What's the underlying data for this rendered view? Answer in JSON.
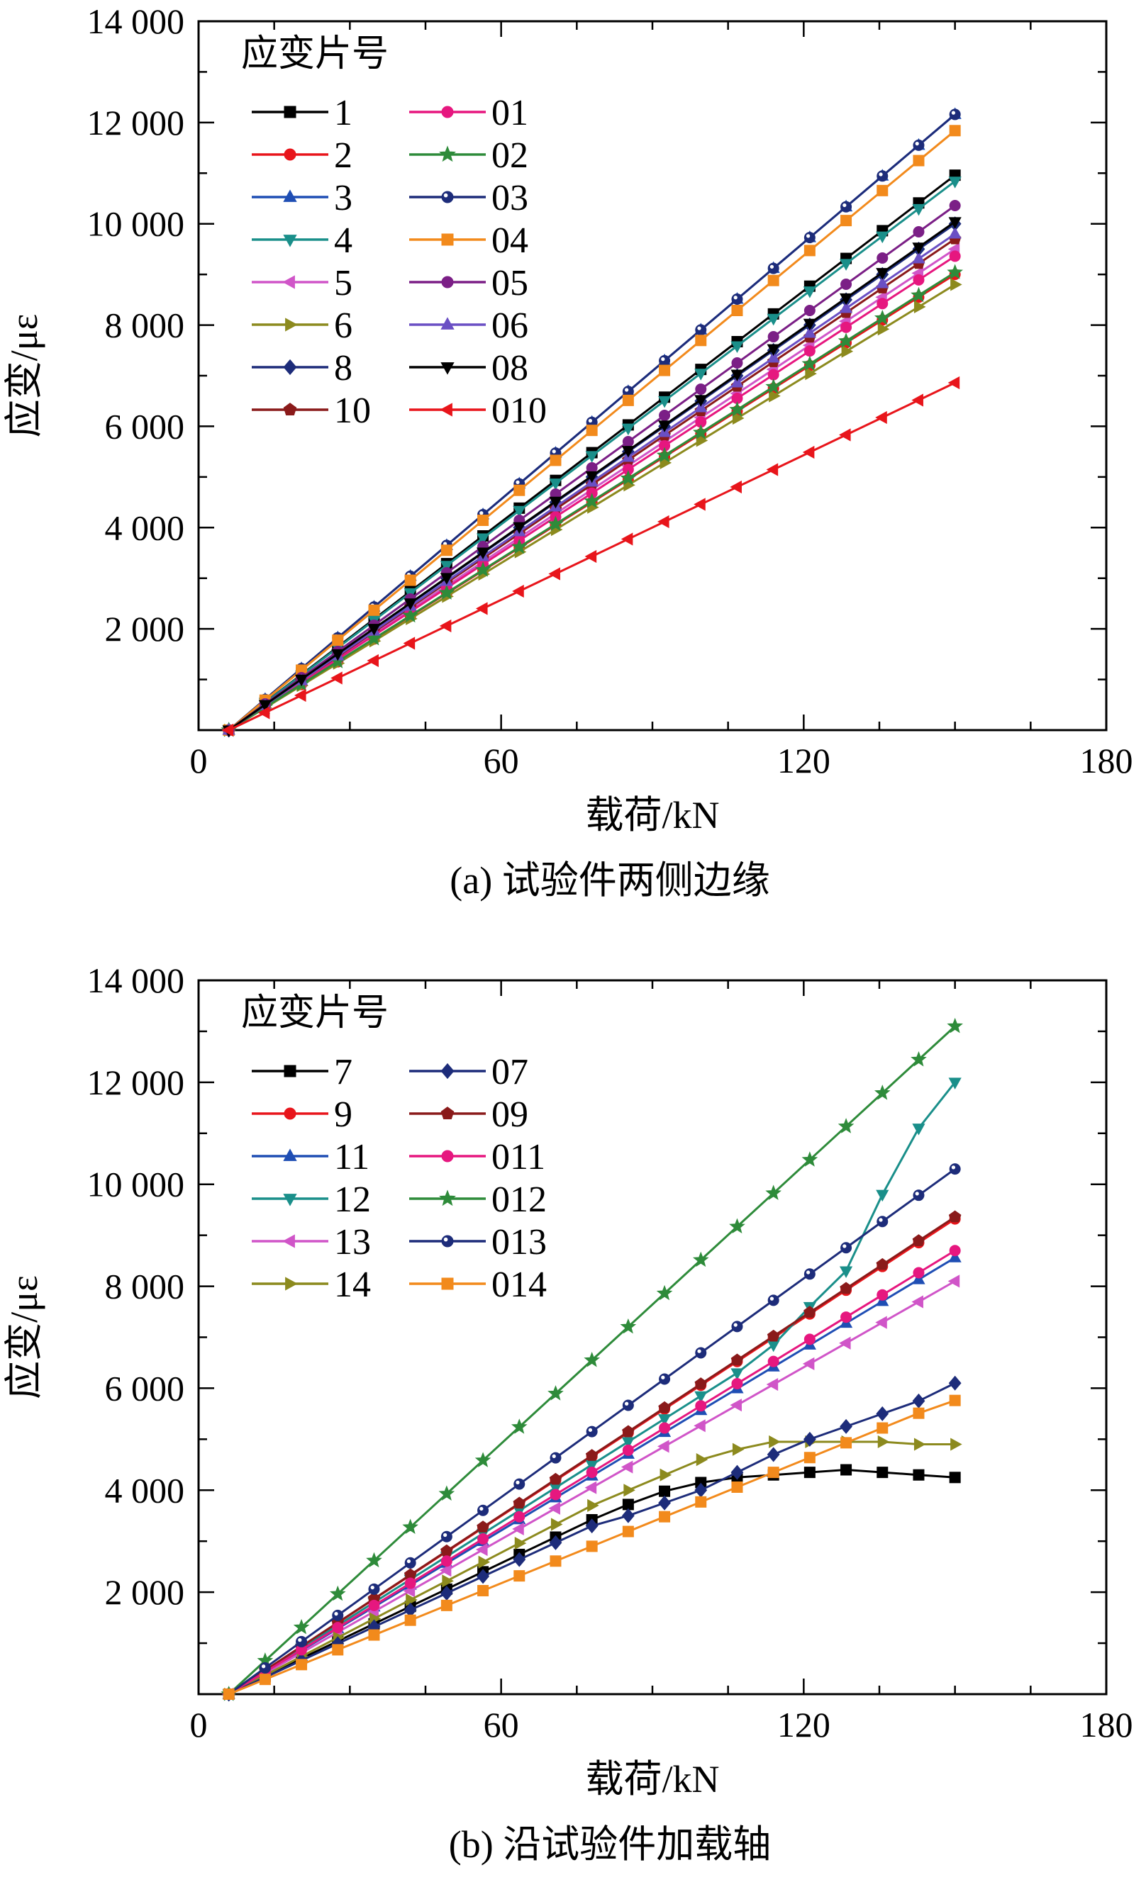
{
  "chart_data": [
    {
      "type": "line",
      "caption": "(a) 试验件两侧边缘",
      "xlabel": "载荷/kN",
      "ylabel": "应变/με",
      "xlim": [
        0,
        180
      ],
      "ylim": [
        0,
        14000
      ],
      "xticks": [
        0,
        60,
        120,
        180
      ],
      "yticks": [
        2000,
        4000,
        6000,
        8000,
        10000,
        12000,
        14000
      ],
      "xtick_labels": [
        "0",
        "60",
        "120",
        "180"
      ],
      "ytick_labels": [
        "2 000",
        "4 000",
        "6 000",
        "8 000",
        "10 000",
        "12 000",
        "14 000"
      ],
      "legend_title": "应变片号",
      "legend_position": "top-left",
      "x": [
        6,
        13.2,
        20.4,
        27.6,
        34.8,
        42,
        49.2,
        56.4,
        63.6,
        70.8,
        78,
        85.2,
        92.4,
        99.6,
        106.8,
        114,
        121.2,
        128.4,
        135.6,
        142.8,
        150
      ],
      "series": [
        {
          "name": "1",
          "color": "#000000",
          "marker": "square",
          "values": [
            0,
            548,
            1096,
            1644,
            2192,
            2740,
            3288,
            3836,
            4384,
            4932,
            5480,
            6028,
            6576,
            7124,
            7672,
            8220,
            8768,
            9316,
            9864,
            10412,
            10960
          ]
        },
        {
          "name": "2",
          "color": "#e8151b",
          "marker": "circle",
          "values": [
            0,
            450,
            900,
            1350,
            1800,
            2250,
            2700,
            3150,
            3600,
            4050,
            4500,
            4950,
            5400,
            5850,
            6300,
            6750,
            7200,
            7650,
            8100,
            8550,
            9000
          ]
        },
        {
          "name": "3",
          "color": "#1f4eb4",
          "marker": "triangle-up",
          "values": [
            0,
            608,
            1216,
            1824,
            2432,
            3040,
            3648,
            4256,
            4864,
            5472,
            6080,
            6688,
            7296,
            7904,
            8512,
            9120,
            9728,
            10336,
            10944,
            11552,
            12160
          ]
        },
        {
          "name": "4",
          "color": "#1a8f8a",
          "marker": "triangle-down",
          "values": [
            0,
            542,
            1084,
            1626,
            2168,
            2710,
            3252,
            3794,
            4336,
            4878,
            5420,
            5962,
            6504,
            7046,
            7588,
            8130,
            8672,
            9214,
            9756,
            10298,
            10840
          ]
        },
        {
          "name": "5",
          "color": "#d055c8",
          "marker": "triangle-left",
          "values": [
            0,
            475,
            950,
            1425,
            1900,
            2375,
            2850,
            3325,
            3800,
            4275,
            4750,
            5225,
            5700,
            6175,
            6650,
            7125,
            7600,
            8075,
            8550,
            9025,
            9500
          ]
        },
        {
          "name": "6",
          "color": "#8c8a1e",
          "marker": "triangle-right",
          "values": [
            0,
            440,
            880,
            1320,
            1760,
            2200,
            2640,
            3080,
            3520,
            3960,
            4400,
            4840,
            5280,
            5720,
            6160,
            6600,
            7040,
            7480,
            7920,
            8360,
            8800
          ]
        },
        {
          "name": "8",
          "color": "#1d2c7a",
          "marker": "diamond",
          "values": [
            0,
            500,
            1000,
            1500,
            2000,
            2500,
            3000,
            3500,
            4000,
            4500,
            5000,
            5500,
            6000,
            6500,
            7000,
            7500,
            8000,
            8500,
            9000,
            9500,
            10000
          ]
        },
        {
          "name": "10",
          "color": "#8a1a1a",
          "marker": "pentagon",
          "values": [
            0,
            485,
            970,
            1455,
            1940,
            2425,
            2910,
            3395,
            3880,
            4365,
            4850,
            5335,
            5820,
            6305,
            6790,
            7275,
            7760,
            8245,
            8730,
            9215,
            9700
          ]
        },
        {
          "name": "01",
          "color": "#e6177f",
          "marker": "circle",
          "values": [
            0,
            468,
            936,
            1404,
            1872,
            2340,
            2808,
            3276,
            3744,
            4212,
            4680,
            5148,
            5616,
            6084,
            6552,
            7020,
            7488,
            7956,
            8424,
            8892,
            9360
          ]
        },
        {
          "name": "02",
          "color": "#2e8b3a",
          "marker": "star",
          "values": [
            0,
            452,
            904,
            1356,
            1808,
            2260,
            2712,
            3164,
            3616,
            4068,
            4520,
            4972,
            5424,
            5876,
            6328,
            6780,
            7232,
            7684,
            8136,
            8588,
            9040
          ]
        },
        {
          "name": "03",
          "color": "#1d2c7a",
          "marker": "circle-dot",
          "values": [
            0,
            608,
            1216,
            1824,
            2432,
            3040,
            3648,
            4256,
            4864,
            5472,
            6080,
            6688,
            7296,
            7904,
            8512,
            9120,
            9728,
            10336,
            10944,
            11552,
            12160
          ]
        },
        {
          "name": "04",
          "color": "#f28a1c",
          "marker": "square",
          "values": [
            0,
            592,
            1184,
            1776,
            2368,
            2960,
            3552,
            4144,
            4736,
            5328,
            5920,
            6512,
            7104,
            7696,
            8288,
            8880,
            9472,
            10064,
            10656,
            11248,
            11840
          ]
        },
        {
          "name": "05",
          "color": "#7b1f86",
          "marker": "circle",
          "values": [
            0,
            518,
            1036,
            1554,
            2072,
            2590,
            3108,
            3626,
            4144,
            4662,
            5180,
            5698,
            6216,
            6734,
            7252,
            7770,
            8288,
            8806,
            9324,
            9842,
            10360
          ]
        },
        {
          "name": "06",
          "color": "#6a4fc4",
          "marker": "triangle-up",
          "values": [
            0,
            490,
            980,
            1470,
            1960,
            2450,
            2940,
            3430,
            3920,
            4410,
            4900,
            5390,
            5880,
            6370,
            6860,
            7350,
            7840,
            8330,
            8820,
            9310,
            9800
          ]
        },
        {
          "name": "08",
          "color": "#000000",
          "marker": "triangle-down",
          "values": [
            0,
            502,
            1004,
            1506,
            2008,
            2510,
            3012,
            3514,
            4016,
            4518,
            5020,
            5522,
            6024,
            6526,
            7028,
            7530,
            8032,
            8534,
            9036,
            9538,
            10040
          ]
        },
        {
          "name": "010",
          "color": "#e8151b",
          "marker": "triangle-left",
          "values": [
            0,
            343,
            686,
            1029,
            1372,
            1715,
            2058,
            2401,
            2744,
            3087,
            3430,
            3773,
            4116,
            4459,
            4802,
            5145,
            5488,
            5831,
            6174,
            6517,
            6860
          ]
        }
      ]
    },
    {
      "type": "line",
      "caption": "(b) 沿试验件加载轴",
      "xlabel": "载荷/kN",
      "ylabel": "应变/με",
      "xlim": [
        0,
        180
      ],
      "ylim": [
        0,
        14000
      ],
      "xticks": [
        0,
        60,
        120,
        180
      ],
      "yticks": [
        2000,
        4000,
        6000,
        8000,
        10000,
        12000,
        14000
      ],
      "xtick_labels": [
        "0",
        "60",
        "120",
        "180"
      ],
      "ytick_labels": [
        "2 000",
        "4 000",
        "6 000",
        "8 000",
        "10 000",
        "12 000",
        "14 000"
      ],
      "legend_title": "应变片号",
      "legend_position": "top-left",
      "x": [
        6,
        13.2,
        20.4,
        27.6,
        34.8,
        42,
        49.2,
        56.4,
        63.6,
        70.8,
        78,
        85.2,
        92.4,
        99.6,
        106.8,
        114,
        121.2,
        128.4,
        135.6,
        142.8,
        150
      ],
      "series": [
        {
          "name": "7",
          "color": "#000000",
          "marker": "square",
          "values": [
            0,
            350,
            700,
            1040,
            1380,
            1720,
            2060,
            2400,
            2740,
            3080,
            3420,
            3720,
            3980,
            4150,
            4250,
            4300,
            4350,
            4400,
            4350,
            4300,
            4250
          ]
        },
        {
          "name": "9",
          "color": "#e8151b",
          "marker": "circle",
          "values": [
            0,
            466,
            932,
            1398,
            1864,
            2330,
            2796,
            3262,
            3728,
            4194,
            4660,
            5126,
            5592,
            6058,
            6524,
            6990,
            7456,
            7922,
            8388,
            8854,
            9320
          ]
        },
        {
          "name": "11",
          "color": "#1f4eb4",
          "marker": "triangle-up",
          "values": [
            0,
            428,
            856,
            1284,
            1712,
            2140,
            2568,
            2996,
            3424,
            3852,
            4280,
            4708,
            5136,
            5564,
            5992,
            6420,
            6848,
            7276,
            7704,
            8132,
            8560
          ]
        },
        {
          "name": "12",
          "color": "#1a8f8a",
          "marker": "triangle-down",
          "values": [
            0,
            450,
            900,
            1350,
            1800,
            2250,
            2700,
            3150,
            3600,
            4050,
            4500,
            4950,
            5400,
            5850,
            6300,
            6850,
            7600,
            8300,
            9800,
            11100,
            12000
          ]
        },
        {
          "name": "13",
          "color": "#d055c8",
          "marker": "triangle-left",
          "values": [
            0,
            405,
            810,
            1215,
            1620,
            2025,
            2430,
            2835,
            3240,
            3645,
            4050,
            4455,
            4860,
            5265,
            5670,
            6075,
            6480,
            6885,
            7290,
            7695,
            8100
          ]
        },
        {
          "name": "14",
          "color": "#8c8a1e",
          "marker": "triangle-right",
          "values": [
            0,
            370,
            740,
            1110,
            1480,
            1850,
            2220,
            2590,
            2960,
            3330,
            3700,
            4000,
            4300,
            4600,
            4800,
            4950,
            4950,
            4950,
            4950,
            4900,
            4900
          ]
        },
        {
          "name": "07",
          "color": "#1d2c7a",
          "marker": "diamond",
          "values": [
            0,
            330,
            660,
            990,
            1320,
            1650,
            1980,
            2310,
            2640,
            2970,
            3300,
            3500,
            3750,
            4000,
            4350,
            4700,
            5000,
            5250,
            5500,
            5750,
            6100
          ]
        },
        {
          "name": "09",
          "color": "#8a1a1a",
          "marker": "pentagon",
          "values": [
            0,
            468,
            936,
            1404,
            1872,
            2340,
            2808,
            3276,
            3744,
            4212,
            4680,
            5148,
            5616,
            6084,
            6552,
            7020,
            7488,
            7956,
            8424,
            8892,
            9360
          ]
        },
        {
          "name": "011",
          "color": "#e6177f",
          "marker": "circle",
          "values": [
            0,
            435,
            870,
            1305,
            1740,
            2175,
            2610,
            3045,
            3480,
            3915,
            4350,
            4785,
            5220,
            5655,
            6090,
            6525,
            6960,
            7395,
            7830,
            8265,
            8700
          ]
        },
        {
          "name": "012",
          "color": "#2e8b3a",
          "marker": "star",
          "values": [
            0,
            655,
            1310,
            1965,
            2620,
            3275,
            3930,
            4585,
            5240,
            5895,
            6550,
            7205,
            7860,
            8515,
            9170,
            9825,
            10480,
            11135,
            11790,
            12445,
            13100
          ]
        },
        {
          "name": "013",
          "color": "#1d2c7a",
          "marker": "circle-dot",
          "values": [
            0,
            515,
            1030,
            1545,
            2060,
            2575,
            3090,
            3605,
            4120,
            4635,
            5150,
            5665,
            6180,
            6695,
            7210,
            7725,
            8240,
            8755,
            9270,
            9785,
            10300
          ]
        },
        {
          "name": "014",
          "color": "#f28a1c",
          "marker": "square",
          "values": [
            0,
            290,
            580,
            870,
            1160,
            1450,
            1740,
            2030,
            2320,
            2610,
            2900,
            3190,
            3480,
            3770,
            4060,
            4350,
            4640,
            4930,
            5220,
            5510,
            5760
          ]
        }
      ]
    }
  ]
}
